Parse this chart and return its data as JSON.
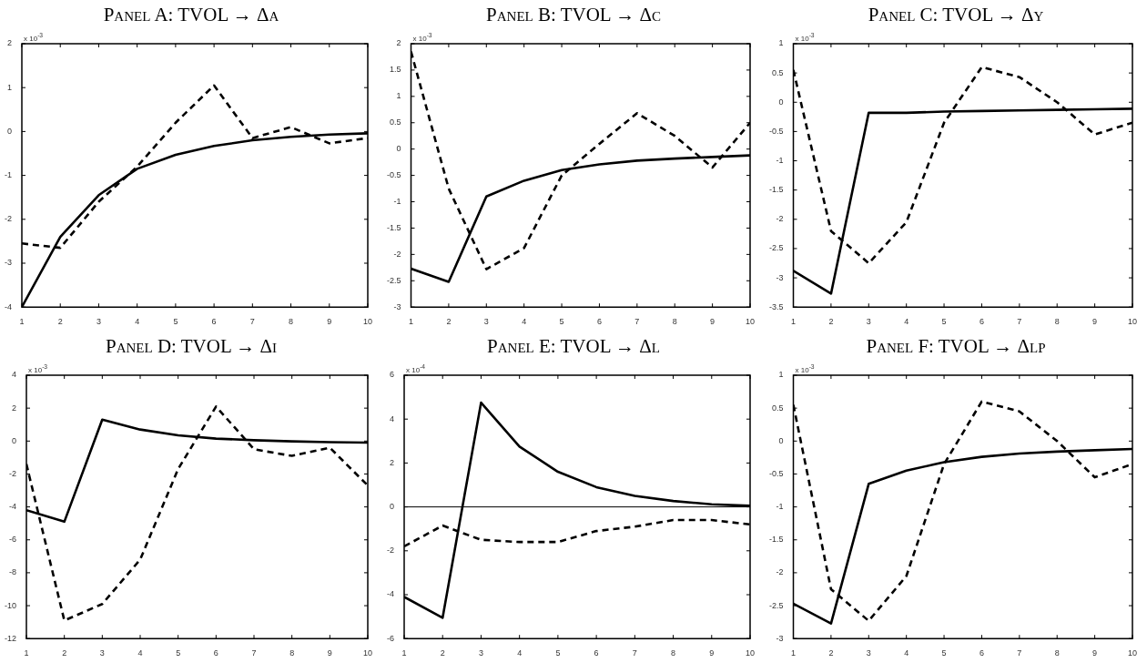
{
  "chart_data": [
    {
      "type": "line",
      "title": "Panel A: TVOL → Δa",
      "annotations": [
        "x 10$^{-3}$"
      ],
      "x": [
        1,
        2,
        3,
        4,
        5,
        6,
        7,
        8,
        9,
        10
      ],
      "xlim": [
        1,
        10
      ],
      "xticks": [
        1,
        2,
        3,
        4,
        5,
        6,
        7,
        8,
        9,
        10
      ],
      "ylim": [
        -4,
        2
      ],
      "yticks": [
        -4,
        -3,
        -2,
        -1,
        0,
        1,
        2
      ],
      "marker": "none",
      "series": [
        {
          "color": "#000000",
          "line_style": "solid",
          "values": [
            -4,
            -2.4,
            -1.45,
            -0.85,
            -0.53,
            -0.33,
            -0.2,
            -0.12,
            -0.07,
            -0.04
          ]
        },
        {
          "color": "#000000",
          "line_style": "dashed",
          "values": [
            -2.55,
            -2.65,
            -1.6,
            -0.8,
            0.2,
            1.05,
            -0.15,
            0.1,
            -0.27,
            -0.15
          ]
        }
      ]
    },
    {
      "type": "line",
      "title": "Panel B: TVOL → Δc",
      "annotations": [
        "x 10$^{-3}$"
      ],
      "x": [
        1,
        2,
        3,
        4,
        5,
        6,
        7,
        8,
        9,
        10
      ],
      "xlim": [
        1,
        10
      ],
      "xticks": [
        1,
        2,
        3,
        4,
        5,
        6,
        7,
        8,
        9,
        10
      ],
      "ylim": [
        -3,
        2
      ],
      "yticks": [
        -3,
        -2.5,
        -2,
        -1.5,
        -1,
        -0.5,
        0,
        0.5,
        1,
        1.5,
        2
      ],
      "marker": "none",
      "series": [
        {
          "color": "#000000",
          "line_style": "solid",
          "values": [
            -2.27,
            -2.52,
            -0.9,
            -0.6,
            -0.4,
            -0.29,
            -0.22,
            -0.18,
            -0.15,
            -0.12
          ]
        },
        {
          "color": "#000000",
          "line_style": "dashed",
          "values": [
            1.85,
            -0.75,
            -2.28,
            -1.88,
            -0.5,
            0.1,
            0.68,
            0.25,
            -0.35,
            0.5
          ]
        }
      ]
    },
    {
      "type": "line",
      "title": "Panel C: TVOL → Δy",
      "annotations": [
        "x 10$^{-3}$"
      ],
      "x": [
        1,
        2,
        3,
        4,
        5,
        6,
        7,
        8,
        9,
        10
      ],
      "xlim": [
        1,
        10
      ],
      "xticks": [
        1,
        2,
        3,
        4,
        5,
        6,
        7,
        8,
        9,
        10
      ],
      "ylim": [
        -3.5,
        1
      ],
      "yticks": [
        -3.5,
        -3,
        -2.5,
        -2,
        -1.5,
        -1,
        -0.5,
        0,
        0.5,
        1
      ],
      "marker": "none",
      "series": [
        {
          "color": "#000000",
          "line_style": "solid",
          "values": [
            -2.88,
            -3.27,
            -0.18,
            -0.18,
            -0.16,
            -0.15,
            -0.14,
            -0.13,
            -0.12,
            -0.11
          ]
        },
        {
          "color": "#000000",
          "line_style": "dashed",
          "values": [
            0.55,
            -2.2,
            -2.75,
            -2.05,
            -0.35,
            0.6,
            0.43,
            0,
            -0.55,
            -0.35
          ]
        }
      ]
    },
    {
      "type": "line",
      "title": "Panel D: TVOL → Δi",
      "annotations": [
        "x 10$^{-3}$"
      ],
      "x": [
        1,
        2,
        3,
        4,
        5,
        6,
        7,
        8,
        9,
        10
      ],
      "xlim": [
        1,
        10
      ],
      "xticks": [
        1,
        2,
        3,
        4,
        5,
        6,
        7,
        8,
        9,
        10
      ],
      "ylim": [
        -12,
        4
      ],
      "yticks": [
        -12,
        -10,
        -8,
        -6,
        -4,
        -2,
        0,
        2,
        4
      ],
      "marker": "none",
      "series": [
        {
          "color": "#000000",
          "line_style": "solid",
          "values": [
            -4.2,
            -4.9,
            1.3,
            0.7,
            0.35,
            0.15,
            0.05,
            -0.02,
            -0.07,
            -0.09
          ]
        },
        {
          "color": "#000000",
          "line_style": "dashed",
          "values": [
            -1.4,
            -10.9,
            -9.9,
            -7.2,
            -1.7,
            2.1,
            -0.5,
            -0.9,
            -0.4,
            -2.7
          ]
        }
      ]
    },
    {
      "type": "line",
      "title": "Panel E: TVOL → Δl",
      "annotations": [
        "x 10$^{-4}$"
      ],
      "x": [
        1,
        2,
        3,
        4,
        5,
        6,
        7,
        8,
        9,
        10
      ],
      "xlim": [
        1,
        10
      ],
      "xticks": [
        1,
        2,
        3,
        4,
        5,
        6,
        7,
        8,
        9,
        10
      ],
      "ylim": [
        -6,
        6
      ],
      "yticks": [
        -6,
        -4,
        -2,
        0,
        2,
        4,
        6
      ],
      "marker": "none",
      "ref_lines": [
        {
          "axis": "y",
          "value": 0,
          "color": "#000000"
        }
      ],
      "series": [
        {
          "color": "#000000",
          "line_style": "solid",
          "values": [
            -4.1,
            -5.05,
            4.75,
            2.75,
            1.6,
            0.9,
            0.5,
            0.27,
            0.12,
            0.05
          ]
        },
        {
          "color": "#000000",
          "line_style": "dashed",
          "values": [
            -1.8,
            -0.85,
            -1.5,
            -1.6,
            -1.6,
            -1.1,
            -0.9,
            -0.6,
            -0.6,
            -0.8
          ]
        }
      ]
    },
    {
      "type": "line",
      "title": "Panel F: TVOL → Δlp",
      "annotations": [
        "x 10$^{-3}$"
      ],
      "x": [
        1,
        2,
        3,
        4,
        5,
        6,
        7,
        8,
        9,
        10
      ],
      "xlim": [
        1,
        10
      ],
      "xticks": [
        1,
        2,
        3,
        4,
        5,
        6,
        7,
        8,
        9,
        10
      ],
      "ylim": [
        -3,
        1
      ],
      "yticks": [
        -3,
        -2.5,
        -2,
        -1.5,
        -1,
        -0.5,
        0,
        0.5,
        1
      ],
      "marker": "none",
      "series": [
        {
          "color": "#000000",
          "line_style": "solid",
          "values": [
            -2.47,
            -2.77,
            -0.65,
            -0.45,
            -0.32,
            -0.24,
            -0.19,
            -0.16,
            -0.14,
            -0.12
          ]
        },
        {
          "color": "#000000",
          "line_style": "dashed",
          "values": [
            0.55,
            -2.25,
            -2.73,
            -2.05,
            -0.35,
            0.6,
            0.45,
            0,
            -0.55,
            -0.35
          ]
        }
      ]
    }
  ]
}
